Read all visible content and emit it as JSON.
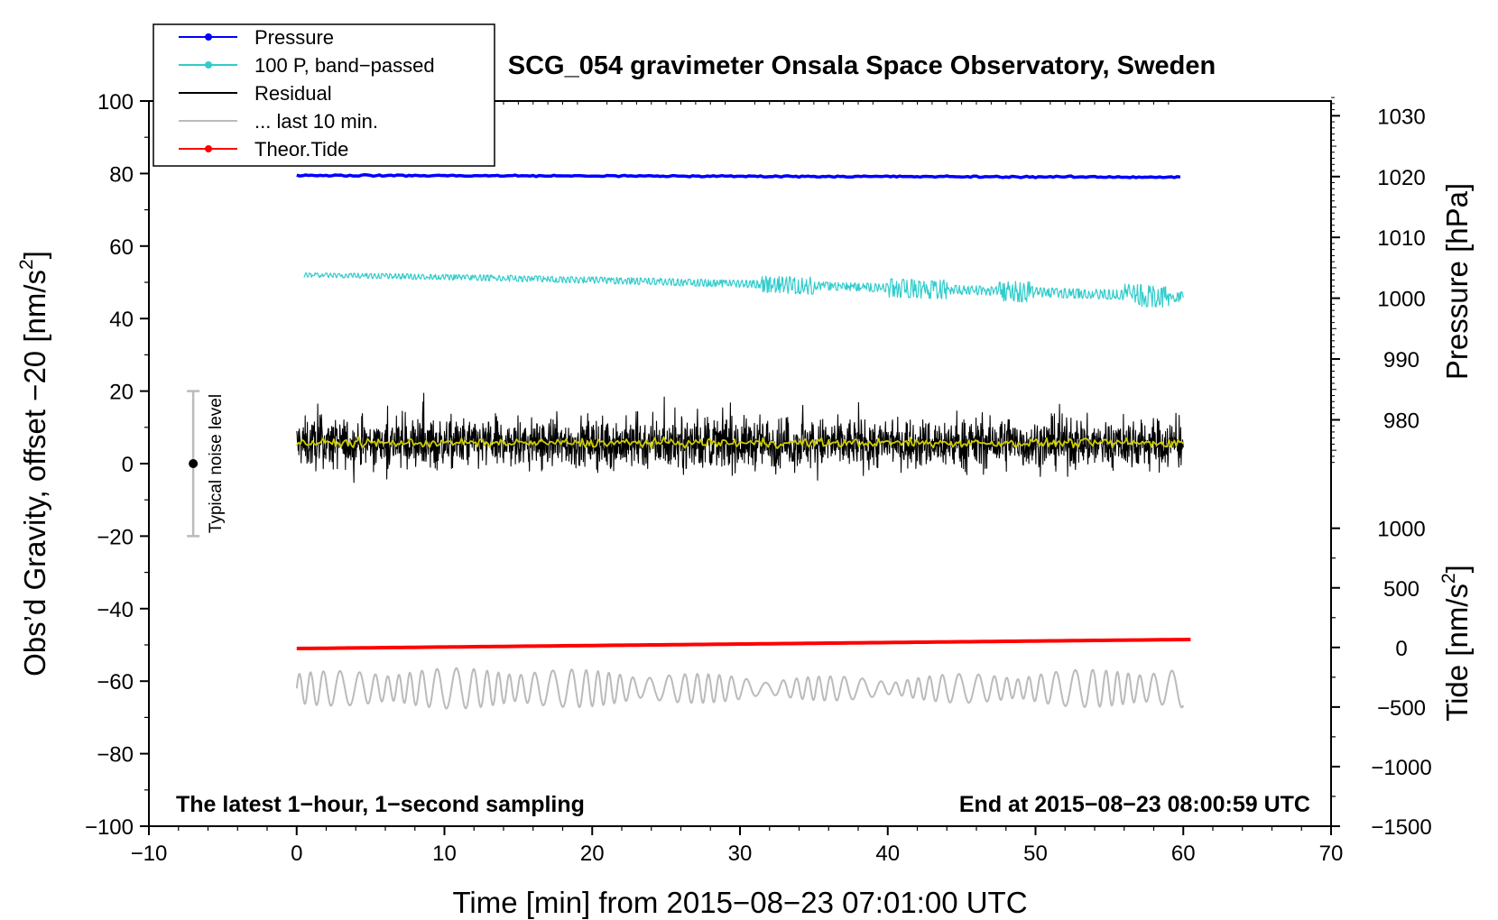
{
  "chart_data": {
    "type": "line",
    "title": "SCG_054 gravimeter Onsala Space Observatory, Sweden",
    "xlabel": "Time [min] from 2015−08−23 07:01:00 UTC",
    "ylabel": "Obs’d Gravity, offset −20 [nm/s²]",
    "ylabel_main": "Obs’d Gravity, offset −20 [nm/s",
    "ylabel_sup": "2",
    "ylabel_end": "]",
    "xlim": [
      -10,
      70
    ],
    "ylim": [
      -100,
      100
    ],
    "x_ticks": [
      "−10",
      "0",
      "10",
      "20",
      "30",
      "40",
      "50",
      "60",
      "70"
    ],
    "x_tick_values": [
      -10,
      0,
      10,
      20,
      30,
      40,
      50,
      60,
      70
    ],
    "y_ticks": [
      "100",
      "80",
      "60",
      "40",
      "20",
      "0",
      "−20",
      "−40",
      "−60",
      "−80",
      "−100"
    ],
    "y_tick_values": [
      100,
      80,
      60,
      40,
      20,
      0,
      -20,
      -40,
      -60,
      -80,
      -100
    ],
    "right_axis_pressure": {
      "label": "Pressure [hPa]",
      "ticks": [
        "1030",
        "1020",
        "1010",
        "1000",
        "990",
        "980"
      ],
      "tick_values": [
        1030,
        1020,
        1010,
        1000,
        990,
        980
      ],
      "map_left_to_right": {
        "left": [
          80,
          0
        ],
        "right": [
          1020.5,
          972.8
        ]
      }
    },
    "right_axis_tide": {
      "label_main": "Tide [nm/s",
      "label_sup": "2",
      "label_end": "]",
      "ticks": [
        "1000",
        "500",
        "0",
        "−500",
        "−1000",
        "−1500"
      ],
      "tick_values": [
        1000,
        500,
        0,
        -500,
        -1000,
        -1500
      ],
      "map_left_to_right": {
        "left": [
          -100,
          -50.7
        ],
        "right": [
          -1500,
          0
        ]
      }
    },
    "legend": {
      "placement": "top-left",
      "entries": [
        {
          "label": "Pressure",
          "color": "#0000ff",
          "marker": true
        },
        {
          "label": "100 P, band−passed",
          "color": "#33cccc",
          "marker": true
        },
        {
          "label": "Residual",
          "color": "#000000",
          "marker": false
        },
        {
          "label": "... last 10 min.",
          "color": "#bbbbbb",
          "marker": false
        },
        {
          "label": "Theor.Tide",
          "color": "#ff0000",
          "marker": true
        }
      ]
    },
    "series": [
      {
        "name": "Pressure",
        "color": "#0000ff",
        "x_range": [
          0,
          60
        ],
        "y_start": 79.5,
        "y_end": 79.0,
        "noise": 0.2
      },
      {
        "name": "100 P, band−passed",
        "color": "#33cccc",
        "x_range": [
          0,
          60
        ],
        "y_start": 52,
        "y_end": 46,
        "noise": 1.6
      },
      {
        "name": "Residual",
        "color": "#000000",
        "x_range": [
          0,
          60
        ],
        "y_mean": 5.5,
        "noise": 4.5
      },
      {
        "name": "... last 10 min.",
        "color": "#bbbbbb",
        "x_range": [
          0,
          60
        ],
        "y_mean": -62,
        "amplitude": 4.5
      },
      {
        "name": "Theor.Tide",
        "color": "#ff0000",
        "x_range": [
          0,
          60.5
        ],
        "y_start": -51.0,
        "y_end": -48.5
      }
    ],
    "smoothed_residual": {
      "color": "#cccc00",
      "y_mean": 5.7
    },
    "noise_bar": {
      "label": "Typical noise level",
      "x": -7,
      "y_center": 0,
      "y_low": -20,
      "y_high": 20
    },
    "annotations": {
      "bottom_left": "The latest 1−hour, 1−second sampling",
      "bottom_right": "End at 2015−08−23 08:00:59 UTC"
    }
  }
}
